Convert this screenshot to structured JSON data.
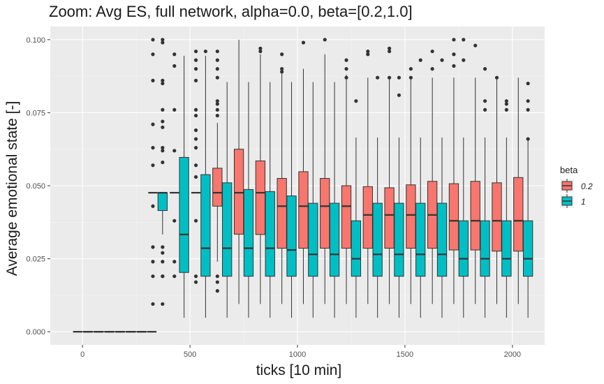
{
  "chart_data": {
    "type": "boxplot",
    "title": "Zoom: Avg ES, full network, alpha=0.0, beta=[0.2,1.0]",
    "xlabel": "ticks [10 min]",
    "ylabel": "Average emotional state [-]",
    "xlim": [
      -150,
      2150
    ],
    "ylim": [
      -0.0045,
      0.1045
    ],
    "x_ticks": [
      0,
      500,
      1000,
      1500,
      2000
    ],
    "x_tick_labels": [
      "0",
      "500",
      "1000",
      "1500",
      "2000"
    ],
    "y_ticks": [
      0,
      0.025,
      0.05,
      0.075,
      0.1
    ],
    "y_tick_labels": [
      "0.000",
      "0.025",
      "0.050",
      "0.075",
      "0.100"
    ],
    "grid": true,
    "legend": {
      "title": "beta",
      "placement": "right",
      "entries": [
        {
          "label": "0.2",
          "color": "#F8766D"
        },
        {
          "label": "1",
          "color": "#00BFC4"
        }
      ]
    },
    "series": [
      {
        "name": "0.2",
        "color": "#F8766D",
        "boxes": [
          {
            "x": 0,
            "q1": 0,
            "median": 0,
            "q3": 0,
            "low": 0,
            "high": 0,
            "outliers": []
          },
          {
            "x": 50,
            "q1": 0,
            "median": 0,
            "q3": 0,
            "low": 0,
            "high": 0,
            "outliers": []
          },
          {
            "x": 100,
            "q1": 0,
            "median": 0,
            "q3": 0,
            "low": 0,
            "high": 0,
            "outliers": []
          },
          {
            "x": 150,
            "q1": 0,
            "median": 0,
            "q3": 0,
            "low": 0,
            "high": 0,
            "outliers": []
          },
          {
            "x": 200,
            "q1": 0,
            "median": 0,
            "q3": 0,
            "low": 0,
            "high": 0,
            "outliers": []
          },
          {
            "x": 250,
            "q1": 0,
            "median": 0,
            "q3": 0,
            "low": 0,
            "high": 0,
            "outliers": []
          },
          {
            "x": 300,
            "q1": 0,
            "median": 0,
            "q3": 0,
            "low": 0,
            "high": 0,
            "outliers": []
          },
          {
            "x": 350,
            "q1": 0.0476,
            "median": 0.0476,
            "q3": 0.0476,
            "low": 0.0476,
            "high": 0.0476,
            "outliers": [
              0.1,
              0.095,
              0.086,
              0.071,
              0.063,
              0.057,
              0.043,
              0.029,
              0.024,
              0.019,
              0.0095
            ]
          },
          {
            "x": 450,
            "q1": 0.0476,
            "median": 0.0476,
            "q3": 0.0476,
            "low": 0.0476,
            "high": 0.0476,
            "outliers": [
              0.095,
              0.091,
              0.076,
              0.062,
              0.038,
              0.024,
              0.019
            ]
          },
          {
            "x": 550,
            "q1": 0.0476,
            "median": 0.0476,
            "q3": 0.0476,
            "low": 0.0476,
            "high": 0.0476,
            "outliers": [
              0.096,
              0.093,
              0.09,
              0.086,
              0.076,
              0.074,
              0.069,
              0.066,
              0.063,
              0.057,
              0.053,
              0.038,
              0.019,
              0.017
            ]
          },
          {
            "x": 650,
            "q1": 0.043,
            "median": 0.0476,
            "q3": 0.056,
            "low": 0.024,
            "high": 0.0715,
            "outliers": [
              0.096,
              0.093,
              0.09,
              0.087,
              0.079,
              0.078,
              0.076,
              0.074,
              0.019,
              0.017,
              0.014
            ]
          },
          {
            "x": 750,
            "q1": 0.0334,
            "median": 0.0476,
            "q3": 0.0625,
            "low": 0.0095,
            "high": 0.1,
            "outliers": []
          },
          {
            "x": 850,
            "q1": 0.0333,
            "median": 0.0476,
            "q3": 0.0585,
            "low": 0.0095,
            "high": 0.095,
            "outliers": [
              0.097,
              0.096
            ]
          },
          {
            "x": 950,
            "q1": 0.0286,
            "median": 0.043,
            "q3": 0.0525,
            "low": 0.0095,
            "high": 0.0905,
            "outliers": [
              0.095,
              0.09,
              0.089
            ]
          },
          {
            "x": 1050,
            "q1": 0.0286,
            "median": 0.043,
            "q3": 0.0548,
            "low": 0.0095,
            "high": 0.09,
            "outliers": [
              0.099
            ]
          },
          {
            "x": 1150,
            "q1": 0.0286,
            "median": 0.043,
            "q3": 0.0525,
            "low": 0.0095,
            "high": 0.095,
            "outliers": [
              0.1
            ]
          },
          {
            "x": 1250,
            "q1": 0.0286,
            "median": 0.043,
            "q3": 0.05,
            "low": 0.0095,
            "high": 0.088,
            "outliers": [
              0.093,
              0.09,
              0.087
            ]
          },
          {
            "x": 1350,
            "q1": 0.0286,
            "median": 0.04,
            "q3": 0.0497,
            "low": 0.0095,
            "high": 0.087,
            "outliers": [
              0.096,
              0.095
            ]
          },
          {
            "x": 1450,
            "q1": 0.0286,
            "median": 0.04,
            "q3": 0.0493,
            "low": 0.0095,
            "high": 0.087,
            "outliers": [
              0.097,
              0.096,
              0.087
            ]
          },
          {
            "x": 1550,
            "q1": 0.0286,
            "median": 0.04,
            "q3": 0.0503,
            "low": 0.0095,
            "high": 0.087,
            "outliers": [
              0.09,
              0.087
            ]
          },
          {
            "x": 1650,
            "q1": 0.0286,
            "median": 0.04,
            "q3": 0.0515,
            "low": 0.0095,
            "high": 0.087,
            "outliers": [
              0.096,
              0.09
            ]
          },
          {
            "x": 1750,
            "q1": 0.028,
            "median": 0.038,
            "q3": 0.0507,
            "low": 0.0095,
            "high": 0.087,
            "outliers": [
              0.1,
              0.095,
              0.091
            ]
          },
          {
            "x": 1850,
            "q1": 0.028,
            "median": 0.038,
            "q3": 0.0515,
            "low": 0.0095,
            "high": 0.087,
            "outliers": [
              0.098
            ]
          },
          {
            "x": 1950,
            "q1": 0.0276,
            "median": 0.038,
            "q3": 0.051,
            "low": 0.0095,
            "high": 0.087,
            "outliers": [
              0.087
            ]
          },
          {
            "x": 2050,
            "q1": 0.0276,
            "median": 0.038,
            "q3": 0.0528,
            "low": 0.0095,
            "high": 0.087,
            "outliers": []
          }
        ]
      },
      {
        "name": "1",
        "color": "#00BFC4",
        "boxes": [
          {
            "x": 0,
            "q1": 0,
            "median": 0,
            "q3": 0,
            "low": 0,
            "high": 0,
            "outliers": []
          },
          {
            "x": 50,
            "q1": 0,
            "median": 0,
            "q3": 0,
            "low": 0,
            "high": 0,
            "outliers": []
          },
          {
            "x": 100,
            "q1": 0,
            "median": 0,
            "q3": 0,
            "low": 0,
            "high": 0,
            "outliers": []
          },
          {
            "x": 150,
            "q1": 0,
            "median": 0,
            "q3": 0,
            "low": 0,
            "high": 0,
            "outliers": []
          },
          {
            "x": 200,
            "q1": 0,
            "median": 0,
            "q3": 0,
            "low": 0,
            "high": 0,
            "outliers": []
          },
          {
            "x": 250,
            "q1": 0,
            "median": 0,
            "q3": 0,
            "low": 0,
            "high": 0,
            "outliers": []
          },
          {
            "x": 300,
            "q1": 0,
            "median": 0,
            "q3": 0,
            "low": 0,
            "high": 0,
            "outliers": []
          },
          {
            "x": 350,
            "q1": 0.0415,
            "median": 0.0476,
            "q3": 0.0476,
            "low": 0.0333,
            "high": 0.0476,
            "outliers": [
              0.1,
              0.099,
              0.086,
              0.085,
              0.076,
              0.072,
              0.07,
              0.063,
              0.062,
              0.058,
              0.029,
              0.027,
              0.024,
              0.019,
              0.019,
              0.0095
            ]
          },
          {
            "x": 450,
            "q1": 0.0203,
            "median": 0.0333,
            "q3": 0.0597,
            "low": 0.0048,
            "high": 0.0945,
            "outliers": []
          },
          {
            "x": 550,
            "q1": 0.019,
            "median": 0.0286,
            "q3": 0.0538,
            "low": 0.0048,
            "high": 0.0945,
            "outliers": [
              0.096
            ]
          },
          {
            "x": 650,
            "q1": 0.019,
            "median": 0.0286,
            "q3": 0.051,
            "low": 0.0048,
            "high": 0.0855,
            "outliers": []
          },
          {
            "x": 750,
            "q1": 0.019,
            "median": 0.0286,
            "q3": 0.0487,
            "low": 0.0048,
            "high": 0.0855,
            "outliers": []
          },
          {
            "x": 850,
            "q1": 0.019,
            "median": 0.0286,
            "q3": 0.048,
            "low": 0.0048,
            "high": 0.0855,
            "outliers": []
          },
          {
            "x": 950,
            "q1": 0.019,
            "median": 0.028,
            "q3": 0.0465,
            "low": 0.0048,
            "high": 0.0855,
            "outliers": []
          },
          {
            "x": 1050,
            "q1": 0.019,
            "median": 0.0265,
            "q3": 0.044,
            "low": 0.0048,
            "high": 0.0855,
            "outliers": []
          },
          {
            "x": 1150,
            "q1": 0.019,
            "median": 0.0265,
            "q3": 0.044,
            "low": 0.0048,
            "high": 0.0855,
            "outliers": []
          },
          {
            "x": 1250,
            "q1": 0.019,
            "median": 0.025,
            "q3": 0.038,
            "low": 0.0048,
            "high": 0.0665,
            "outliers": [
              0.079
            ]
          },
          {
            "x": 1350,
            "q1": 0.019,
            "median": 0.0265,
            "q3": 0.044,
            "low": 0.0048,
            "high": 0.0665,
            "outliers": [
              0.087
            ]
          },
          {
            "x": 1450,
            "q1": 0.019,
            "median": 0.0265,
            "q3": 0.044,
            "low": 0.0048,
            "high": 0.0665,
            "outliers": [
              0.087,
              0.081
            ]
          },
          {
            "x": 1550,
            "q1": 0.019,
            "median": 0.0265,
            "q3": 0.044,
            "low": 0.0048,
            "high": 0.0665,
            "outliers": [
              0.093
            ]
          },
          {
            "x": 1650,
            "q1": 0.019,
            "median": 0.0265,
            "q3": 0.044,
            "low": 0.0048,
            "high": 0.0665,
            "outliers": [
              0.093
            ]
          },
          {
            "x": 1750,
            "q1": 0.019,
            "median": 0.025,
            "q3": 0.038,
            "low": 0.0048,
            "high": 0.0665,
            "outliers": [
              0.1,
              0.093
            ]
          },
          {
            "x": 1850,
            "q1": 0.019,
            "median": 0.025,
            "q3": 0.038,
            "low": 0.0048,
            "high": 0.0665,
            "outliers": [
              0.09,
              0.079,
              0.076
            ]
          },
          {
            "x": 1950,
            "q1": 0.019,
            "median": 0.025,
            "q3": 0.038,
            "low": 0.0048,
            "high": 0.0665,
            "outliers": [
              0.079,
              0.078,
              0.076
            ]
          },
          {
            "x": 2050,
            "q1": 0.019,
            "median": 0.025,
            "q3": 0.038,
            "low": 0.0048,
            "high": 0.0665,
            "outliers": [
              0.085,
              0.079,
              0.076,
              0.066
            ]
          }
        ]
      }
    ]
  }
}
